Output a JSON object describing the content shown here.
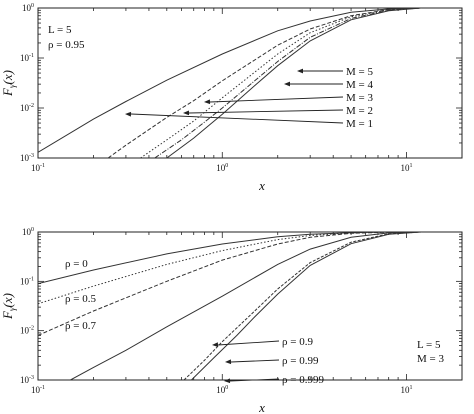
{
  "chart_data": [
    {
      "type": "line",
      "xlabel": "x",
      "ylabel": "F_γ(x)",
      "xscale": "log",
      "yscale": "log",
      "xlim": [
        0.1,
        20
      ],
      "ylim": [
        0.001,
        1
      ],
      "x_ticks": [
        "10^-1",
        "10^0",
        "10^1"
      ],
      "y_ticks": [
        "10^-3",
        "10^-2",
        "10^-1",
        "10^0"
      ],
      "params": [
        "L = 5",
        "ρ = 0.95"
      ],
      "series": [
        {
          "name": "M = 1",
          "points": [
            [
              0.1,
              0.0013
            ],
            [
              0.2,
              0.006
            ],
            [
              0.3,
              0.0135
            ],
            [
              0.5,
              0.036
            ],
            [
              1,
              0.12
            ],
            [
              2,
              0.35
            ],
            [
              3,
              0.55
            ],
            [
              5,
              0.82
            ],
            [
              8,
              0.96
            ],
            [
              12,
              1.0
            ]
          ]
        },
        {
          "name": "M = 2",
          "points": [
            [
              0.24,
              0.001
            ],
            [
              0.3,
              0.0018
            ],
            [
              0.5,
              0.0065
            ],
            [
              0.7,
              0.014
            ],
            [
              1,
              0.035
            ],
            [
              2,
              0.18
            ],
            [
              3,
              0.38
            ],
            [
              5,
              0.7
            ],
            [
              8,
              0.93
            ],
            [
              12,
              1.0
            ]
          ]
        },
        {
          "name": "M = 3",
          "points": [
            [
              0.36,
              0.001
            ],
            [
              0.5,
              0.0023
            ],
            [
              0.7,
              0.0055
            ],
            [
              1,
              0.016
            ],
            [
              2,
              0.12
            ],
            [
              3,
              0.32
            ],
            [
              5,
              0.67
            ],
            [
              8,
              0.92
            ],
            [
              12,
              1.0
            ]
          ]
        },
        {
          "name": "M = 4",
          "points": [
            [
              0.43,
              0.001
            ],
            [
              0.6,
              0.0023
            ],
            [
              0.8,
              0.0052
            ],
            [
              1,
              0.01
            ],
            [
              1.5,
              0.035
            ],
            [
              2,
              0.085
            ],
            [
              3,
              0.26
            ],
            [
              5,
              0.62
            ],
            [
              8,
              0.9
            ],
            [
              12,
              1.0
            ]
          ]
        },
        {
          "name": "M = 5",
          "points": [
            [
              0.5,
              0.001
            ],
            [
              0.7,
              0.0025
            ],
            [
              1,
              0.0075
            ],
            [
              1.5,
              0.028
            ],
            [
              2,
              0.07
            ],
            [
              3,
              0.22
            ],
            [
              5,
              0.58
            ],
            [
              8,
              0.88
            ],
            [
              12,
              1.0
            ]
          ]
        }
      ],
      "labels": [
        {
          "text": "M = 5",
          "series": "M = 5"
        },
        {
          "text": "M = 4",
          "series": "M = 4"
        },
        {
          "text": "M = 3",
          "series": "M = 3"
        },
        {
          "text": "M = 2",
          "series": "M = 2"
        },
        {
          "text": "M = 1",
          "series": "M = 1"
        }
      ]
    },
    {
      "type": "line",
      "xlabel": "x",
      "ylabel": "F_γ(x)",
      "xscale": "log",
      "yscale": "log",
      "xlim": [
        0.1,
        20
      ],
      "ylim": [
        0.001,
        1
      ],
      "x_ticks": [
        "10^-1",
        "10^0",
        "10^1"
      ],
      "y_ticks": [
        "10^-3",
        "10^-2",
        "10^-1",
        "10^0"
      ],
      "params": [
        "L = 5",
        "M = 3"
      ],
      "series": [
        {
          "name": "ρ = 0",
          "points": [
            [
              0.1,
              0.09
            ],
            [
              0.2,
              0.17
            ],
            [
              0.5,
              0.36
            ],
            [
              1,
              0.57
            ],
            [
              2,
              0.8
            ],
            [
              3,
              0.9
            ],
            [
              5,
              0.97
            ],
            [
              8,
              1.0
            ],
            [
              12,
              1.0
            ]
          ]
        },
        {
          "name": "ρ = 0.5",
          "points": [
            [
              0.1,
              0.035
            ],
            [
              0.2,
              0.08
            ],
            [
              0.5,
              0.22
            ],
            [
              1,
              0.42
            ],
            [
              2,
              0.7
            ],
            [
              3,
              0.85
            ],
            [
              5,
              0.96
            ],
            [
              8,
              1.0
            ],
            [
              12,
              1.0
            ]
          ]
        },
        {
          "name": "ρ = 0.7",
          "points": [
            [
              0.1,
              0.008
            ],
            [
              0.2,
              0.025
            ],
            [
              0.5,
              0.1
            ],
            [
              1,
              0.27
            ],
            [
              2,
              0.57
            ],
            [
              3,
              0.78
            ],
            [
              5,
              0.94
            ],
            [
              8,
              0.99
            ],
            [
              12,
              1.0
            ]
          ]
        },
        {
          "name": "ρ = 0.9",
          "points": [
            [
              0.15,
              0.001
            ],
            [
              0.2,
              0.0018
            ],
            [
              0.3,
              0.004
            ],
            [
              0.5,
              0.012
            ],
            [
              1,
              0.05
            ],
            [
              2,
              0.22
            ],
            [
              3,
              0.45
            ],
            [
              5,
              0.78
            ],
            [
              8,
              0.96
            ],
            [
              12,
              1.0
            ]
          ]
        },
        {
          "name": "ρ = 0.99",
          "points": [
            [
              0.62,
              0.001
            ],
            [
              0.8,
              0.0025
            ],
            [
              1,
              0.006
            ],
            [
              1.5,
              0.025
            ],
            [
              2,
              0.07
            ],
            [
              3,
              0.24
            ],
            [
              5,
              0.62
            ],
            [
              8,
              0.92
            ],
            [
              12,
              1.0
            ]
          ]
        },
        {
          "name": "ρ = 0.999",
          "points": [
            [
              0.68,
              0.001
            ],
            [
              0.9,
              0.0028
            ],
            [
              1.2,
              0.008
            ],
            [
              1.5,
              0.019
            ],
            [
              2,
              0.055
            ],
            [
              3,
              0.21
            ],
            [
              5,
              0.58
            ],
            [
              8,
              0.9
            ],
            [
              12,
              1.0
            ]
          ]
        }
      ],
      "labels": [
        {
          "text": "ρ = 0",
          "series": "ρ = 0"
        },
        {
          "text": "ρ = 0.5",
          "series": "ρ = 0.5"
        },
        {
          "text": "ρ = 0.7",
          "series": "ρ = 0.7"
        },
        {
          "text": "ρ = 0.9",
          "series": "ρ = 0.9"
        },
        {
          "text": "ρ = 0.99",
          "series": "ρ = 0.99"
        },
        {
          "text": "ρ = 0.999",
          "series": "ρ = 0.999"
        }
      ]
    }
  ]
}
